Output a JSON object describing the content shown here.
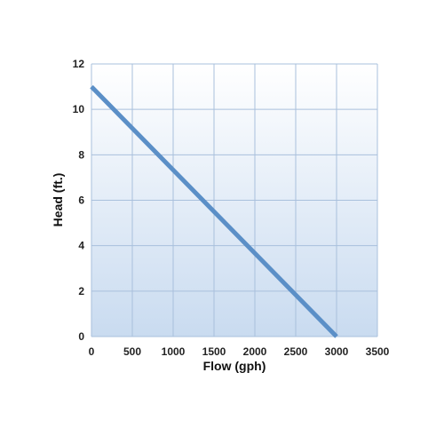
{
  "chart_data": {
    "type": "line",
    "xlabel": "Flow (gph)",
    "ylabel": "Head (ft.)",
    "xlim": [
      0,
      3500
    ],
    "ylim": [
      0,
      12
    ],
    "x_ticks": [
      0,
      500,
      1000,
      1500,
      2000,
      2500,
      3000,
      3500
    ],
    "y_ticks": [
      0,
      2,
      4,
      6,
      8,
      10,
      12
    ],
    "grid": true,
    "legend": "none",
    "series": [
      {
        "x": [
          0,
          3000
        ],
        "y": [
          11,
          0
        ],
        "color": "#5b8fc7"
      }
    ],
    "colors": {
      "plot_bg_top": "#ffffff",
      "plot_bg_bottom": "#c9dbf0",
      "grid": "#a9c0dc",
      "line": "#5b8fc7"
    }
  }
}
